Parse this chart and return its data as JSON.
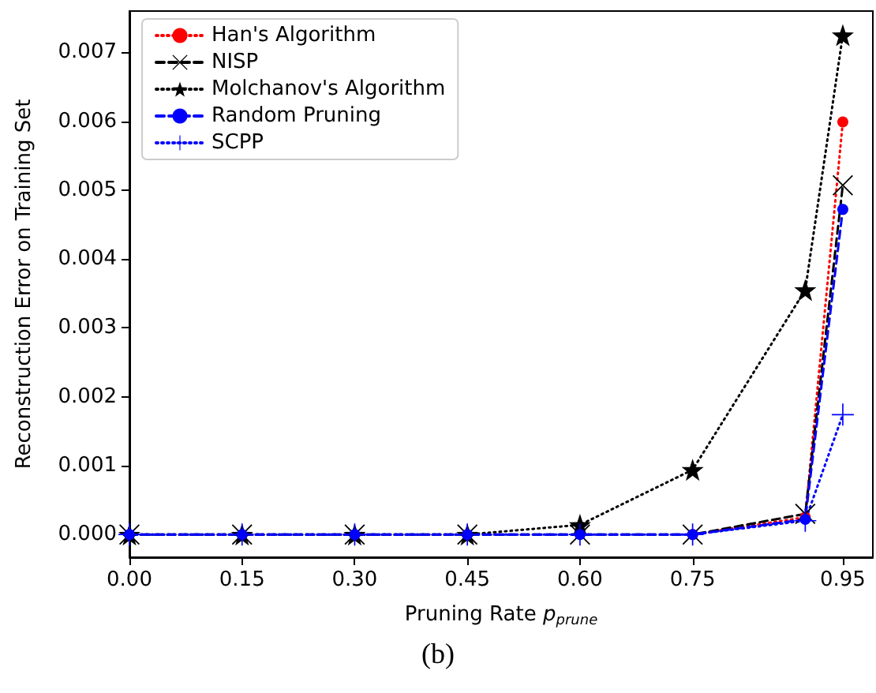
{
  "chart_data": {
    "type": "line",
    "xlabel": "Pruning Rate p$_{prune}$",
    "ylabel": "Reconstruction Error on Training Set",
    "annotations": [
      "(b)"
    ],
    "x": [
      0,
      0.15,
      0.3,
      0.45,
      0.6,
      0.75,
      0.9,
      0.95
    ],
    "series": [
      {
        "name": "Han's Algorithm",
        "color": "#ff0000",
        "marker": "circle",
        "line_style": "dotted",
        "values": [
          null,
          null,
          null,
          null,
          null,
          0,
          0.00025,
          0.00599
        ]
      },
      {
        "name": "NISP",
        "color": "#000000",
        "marker": "cross",
        "line_style": "dashed",
        "values": [
          0,
          0,
          0,
          0,
          0,
          0,
          0.0003,
          0.00507
        ]
      },
      {
        "name": "Molchanov's Algorithm",
        "color": "#000000",
        "marker": "star",
        "line_style": "dotted",
        "values": [
          0,
          0,
          0,
          0,
          0.00014,
          0.00094,
          0.00355,
          0.00725
        ]
      },
      {
        "name": "Random Pruning",
        "color": "#0000ff",
        "marker": "circle",
        "line_style": "dashed",
        "values": [
          0,
          0,
          0,
          0,
          0,
          0,
          0.00022,
          0.00472
        ]
      },
      {
        "name": "SCPP",
        "color": "#0000ff",
        "marker": "plus",
        "line_style": "dotted",
        "values": [
          0,
          0,
          0,
          0,
          0,
          0,
          0.0002,
          0.00174
        ]
      }
    ],
    "xlim": [
      0,
      0.99
    ],
    "xticks": [
      {
        "value": 0,
        "label": "0.00"
      },
      0.15,
      {
        "value": 0.3,
        "label": "0.30"
      },
      0.45,
      {
        "value": 0.6,
        "label": "0.60"
      },
      0.75,
      0.95
    ],
    "ylim": [
      -0.00033,
      0.0076
    ],
    "yticks": [
      {
        "value": 0,
        "label": "0.000"
      },
      0.001,
      0.002,
      0.003,
      0.004,
      0.005,
      0.006,
      0.007
    ],
    "grid": false,
    "legend": "top left"
  }
}
